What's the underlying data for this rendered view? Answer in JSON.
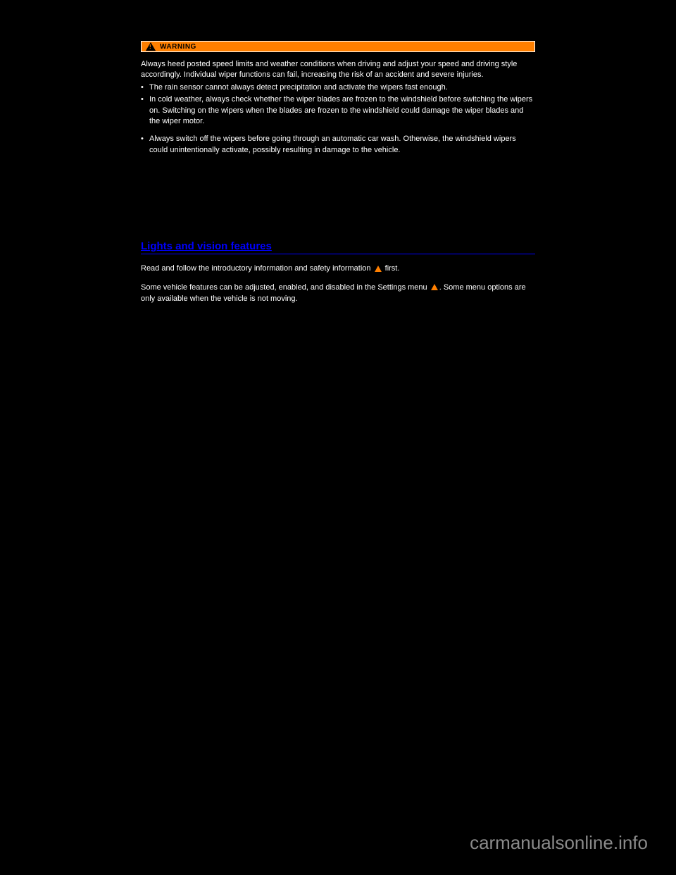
{
  "warning": {
    "label": "WARNING",
    "intro": "Always heed posted speed limits and weather conditions when driving and adjust your speed and driving style accordingly. Individual wiper functions can fail, increasing the risk of an accident and severe injuries.",
    "bullets": [
      "The rain sensor cannot always detect precipitation and activate the wipers fast enough.",
      "In cold weather, always check whether the wiper blades are frozen to the windshield before switching the wipers on. Switching on the wipers when the blades are frozen to the windshield could damage the wiper blades and the wiper motor.",
      "Always switch off the wipers before going through an automatic car wash. Otherwise, the windshield wipers could unintentionally activate, possibly resulting in damage to the vehicle."
    ]
  },
  "features": {
    "heading": "Lights and vision features",
    "para1_pre": "Read and follow the introductory information and safety information ",
    "para1_post": " first.",
    "para2_pre": "Some vehicle features can be adjusted, enabled, and disabled in the Settings menu ",
    "para2_post": ". Some menu options are only available when the vehicle is not moving."
  },
  "watermark": "carmanualsonline.info"
}
